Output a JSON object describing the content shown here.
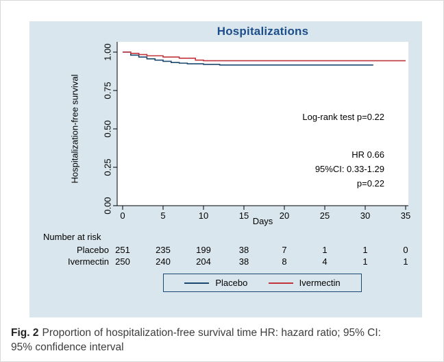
{
  "figure": {
    "caption_label": "Fig. 2",
    "caption_text": "Proportion of hospitalization-free survival time HR: hazard ratio; 95% CI: 95% confidence interval"
  },
  "chart_data": {
    "type": "line",
    "subtype": "kaplan-meier-step",
    "title": "Hospitalizations",
    "xlabel": "Days",
    "ylabel": "Hospitalization-free survival",
    "xlim": [
      0,
      35
    ],
    "ylim": [
      0,
      1.0
    ],
    "xticks": [
      0,
      5,
      10,
      15,
      20,
      25,
      30,
      35
    ],
    "yticks": [
      0,
      0.25,
      0.5,
      0.75,
      1.0
    ],
    "ytick_labels": [
      "0.00",
      "0.25",
      "0.50",
      "0.75",
      "1.00"
    ],
    "grid": false,
    "legend_position": "bottom-center",
    "annotations": {
      "logrank": "Log-rank test p=0.22",
      "hr_block": [
        "HR 0.66",
        "95%CI: 0.33-1.29",
        "p=0.22"
      ]
    },
    "series": [
      {
        "name": "Placebo",
        "color": "#1A476F",
        "step": true,
        "x": [
          0,
          1,
          2,
          3,
          4,
          5,
          6,
          7,
          8,
          10,
          12,
          31
        ],
        "y": [
          1.0,
          0.98,
          0.968,
          0.956,
          0.948,
          0.94,
          0.932,
          0.928,
          0.924,
          0.92,
          0.916,
          0.916
        ]
      },
      {
        "name": "Ivermectin",
        "color": "#C0353B",
        "step": true,
        "x": [
          0,
          1,
          2,
          3,
          5,
          7,
          9,
          10,
          35
        ],
        "y": [
          1.0,
          0.992,
          0.984,
          0.976,
          0.968,
          0.96,
          0.948,
          0.944,
          0.944
        ]
      }
    ],
    "risk_table": {
      "header": "Number at risk",
      "days": [
        0,
        5,
        10,
        15,
        20,
        25,
        30,
        35
      ],
      "rows": [
        {
          "name": "Placebo",
          "values": [
            251,
            235,
            199,
            38,
            7,
            1,
            1,
            0
          ]
        },
        {
          "name": "Ivermectin",
          "values": [
            250,
            240,
            204,
            38,
            8,
            4,
            1,
            1
          ]
        }
      ]
    }
  }
}
